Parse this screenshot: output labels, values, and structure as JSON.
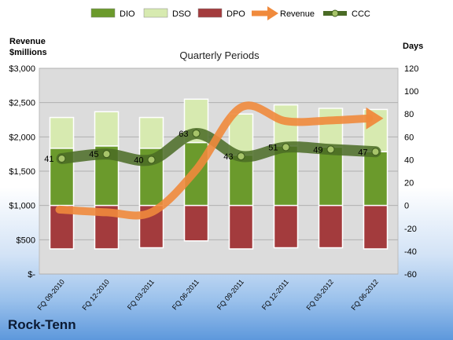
{
  "chart_data": {
    "type": "bar",
    "title": "Quarterly Periods",
    "brand": "Rock-Tenn",
    "y_left_label": [
      "Revenue",
      "$millions"
    ],
    "y_right_label": "Days",
    "categories": [
      "FQ 09-2010",
      "FQ 12-2010",
      "FQ 03-2011",
      "FQ 06-2011",
      "FQ 09-2011",
      "FQ 12-2011",
      "FQ 03-2012",
      "FQ 06-2012"
    ],
    "y_left": {
      "min": 0,
      "max": 3000,
      "step": 500,
      "tick_labels": [
        "$-",
        "$500",
        "$1,000",
        "$1,500",
        "$2,000",
        "$2,500",
        "$3,000"
      ]
    },
    "y_right": {
      "min": -60,
      "max": 120,
      "step": 20
    },
    "series": [
      {
        "name": "DIO",
        "axis": "right",
        "kind": "stacked-bar",
        "color": "#6b9a2c",
        "values": [
          0,
          0,
          0,
          0,
          0,
          0,
          0,
          0
        ],
        "ends": [
          50,
          52,
          50,
          55,
          44,
          52,
          51,
          47
        ]
      },
      {
        "name": "DSO",
        "axis": "right",
        "kind": "stacked-bar",
        "color": "#d7eab0",
        "values": [
          0,
          0,
          0,
          0,
          0,
          0,
          0,
          0
        ],
        "ends": [
          77,
          82,
          77,
          93,
          80,
          88,
          85,
          84
        ]
      },
      {
        "name": "DPO",
        "axis": "right",
        "kind": "bar-negative",
        "color": "#a33b3d",
        "values": [
          -38,
          -38,
          -37,
          -31,
          -38,
          -37,
          -37,
          -38
        ]
      },
      {
        "name": "Revenue",
        "axis": "left",
        "kind": "line",
        "color": "#f08a3c",
        "values": [
          940,
          900,
          900,
          1520,
          2430,
          2230,
          2240,
          2270
        ]
      },
      {
        "name": "CCC",
        "axis": "right",
        "kind": "line",
        "color": "#4a6b25",
        "values": [
          41,
          45,
          40,
          63,
          43,
          51,
          49,
          47
        ],
        "labels": [
          "41",
          "45",
          "40",
          "63",
          "43",
          "51",
          "49",
          "47"
        ]
      }
    ]
  }
}
